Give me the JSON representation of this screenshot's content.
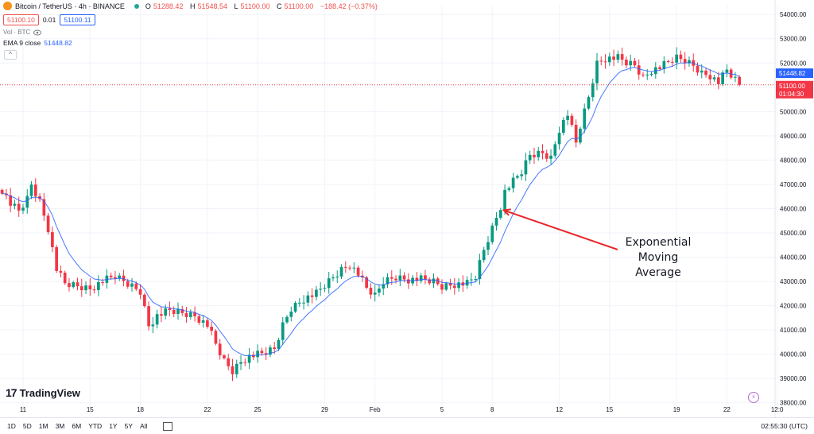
{
  "header": {
    "symbol": "Bitcoin / TetherUS · 4h · BINANCE",
    "ohlc": {
      "o_label": "O",
      "o": "51288.42",
      "h_label": "H",
      "h": "51548.54",
      "l_label": "L",
      "l": "51100.00",
      "c_label": "C",
      "c": "51100.00",
      "change": "−188.42 (−0.37%)"
    },
    "sell_price": "51100.10",
    "spread": "0.01",
    "buy_price": "51100.11",
    "volume_label": "Vol · BTC",
    "ema_label": "EMA 9 close",
    "ema_value": "51448.82",
    "collapse_glyph": "^"
  },
  "brand": {
    "mark": "17",
    "name": "TradingView"
  },
  "bottom_bar": {
    "ranges": [
      "1D",
      "5D",
      "1M",
      "3M",
      "6M",
      "YTD",
      "1Y",
      "5Y",
      "All"
    ],
    "clock": "02:55:30 (UTC)"
  },
  "annotation": {
    "lines": [
      "Exponential",
      "Moving",
      "Average"
    ],
    "arrow_color": "#e8262a"
  },
  "chart_data": {
    "type": "candlestick",
    "ylim": [
      37500,
      54400
    ],
    "y_ticks": [
      38000,
      39000,
      40000,
      41000,
      42000,
      43000,
      44000,
      45000,
      46000,
      47000,
      48000,
      49000,
      50000,
      51000,
      52000,
      53000,
      54000
    ],
    "y_tick_labels": [
      "38000.00",
      "39000.00",
      "40000.00",
      "41000.00",
      "42000.00",
      "43000.00",
      "44000.00",
      "45000.00",
      "46000.00",
      "47000.00",
      "48000.00",
      "49000.00",
      "50000.00",
      "51000.00",
      "52000.00",
      "53000.00",
      "54000.00"
    ],
    "x_tick_labels": [
      "11",
      "15",
      "18",
      "22",
      "25",
      "29",
      "Feb",
      "5",
      "8",
      "12",
      "15",
      "19",
      "22",
      "12:0"
    ],
    "x_tick_bars": [
      5,
      21,
      33,
      49,
      61,
      77,
      89,
      105,
      117,
      133,
      145,
      161,
      173,
      185
    ],
    "ema_value_label": "51448.82",
    "last_price_label": "51100.00",
    "countdown_label": "01:04:30",
    "last_price": 51100,
    "ema_last": 51448.82,
    "colors": {
      "up": "#089981",
      "down": "#f23645",
      "ema": "#2962ff",
      "price_line": "#f23645"
    },
    "series": [
      {
        "name": "Price",
        "anchors": [
          [
            0,
            46800
          ],
          [
            2,
            46200
          ],
          [
            4,
            45900
          ],
          [
            6,
            46400
          ],
          [
            7,
            47000
          ],
          [
            9,
            46300
          ],
          [
            11,
            45200
          ],
          [
            13,
            43500
          ],
          [
            15,
            42900
          ],
          [
            18,
            42800
          ],
          [
            21,
            42700
          ],
          [
            24,
            43000
          ],
          [
            27,
            43200
          ],
          [
            30,
            42900
          ],
          [
            33,
            42600
          ],
          [
            35,
            41200
          ],
          [
            37,
            41600
          ],
          [
            40,
            41800
          ],
          [
            43,
            41700
          ],
          [
            46,
            41600
          ],
          [
            49,
            41200
          ],
          [
            51,
            40400
          ],
          [
            53,
            39700
          ],
          [
            55,
            39300
          ],
          [
            57,
            39700
          ],
          [
            59,
            39900
          ],
          [
            62,
            40000
          ],
          [
            65,
            40200
          ],
          [
            67,
            41200
          ],
          [
            69,
            41900
          ],
          [
            72,
            42300
          ],
          [
            75,
            42500
          ],
          [
            78,
            43000
          ],
          [
            81,
            43500
          ],
          [
            83,
            43700
          ],
          [
            85,
            43300
          ],
          [
            87,
            42700
          ],
          [
            89,
            42400
          ],
          [
            91,
            43000
          ],
          [
            94,
            43200
          ],
          [
            97,
            43100
          ],
          [
            100,
            43100
          ],
          [
            103,
            43000
          ],
          [
            105,
            42800
          ],
          [
            108,
            42900
          ],
          [
            111,
            42900
          ],
          [
            113,
            43200
          ],
          [
            115,
            44300
          ],
          [
            117,
            45200
          ],
          [
            119,
            46100
          ],
          [
            120,
            46700
          ],
          [
            122,
            47100
          ],
          [
            124,
            47500
          ],
          [
            126,
            48200
          ],
          [
            129,
            48300
          ],
          [
            131,
            48100
          ],
          [
            133,
            49300
          ],
          [
            135,
            49900
          ],
          [
            137,
            48700
          ],
          [
            138,
            49400
          ],
          [
            140,
            50600
          ],
          [
            142,
            52000
          ],
          [
            144,
            52200
          ],
          [
            147,
            52200
          ],
          [
            149,
            52000
          ],
          [
            151,
            51900
          ],
          [
            153,
            51400
          ],
          [
            155,
            51700
          ],
          [
            157,
            51800
          ],
          [
            159,
            52000
          ],
          [
            161,
            52200
          ],
          [
            163,
            52100
          ],
          [
            165,
            51900
          ],
          [
            167,
            51600
          ],
          [
            169,
            51500
          ],
          [
            171,
            51200
          ],
          [
            173,
            51700
          ],
          [
            175,
            51300
          ],
          [
            176,
            51100
          ]
        ]
      },
      {
        "name": "EMA 9 close",
        "values_from": "close",
        "period": 9
      }
    ]
  }
}
